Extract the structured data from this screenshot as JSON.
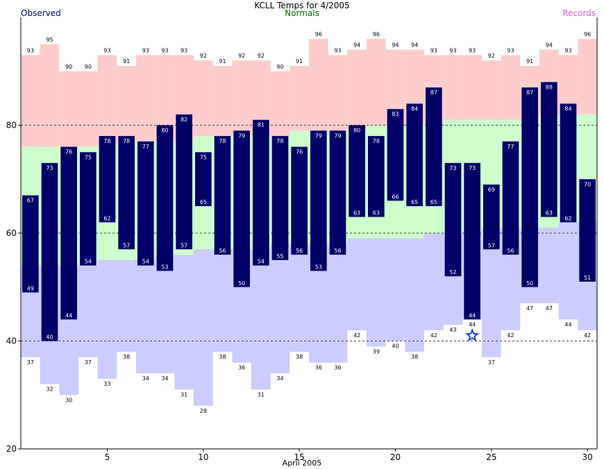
{
  "chart_data": {
    "type": "bar",
    "title": "KCLL Temps for 4/2005",
    "legend": {
      "observed": "Observed",
      "normals": "Normals",
      "records": "Records"
    },
    "xlabel": "April 2005",
    "x_ticks": [
      5,
      10,
      15,
      20,
      25,
      30
    ],
    "y_ticks": [
      20,
      40,
      60,
      80
    ],
    "ylim": [
      20,
      100
    ],
    "xlim": [
      0.5,
      30.5
    ],
    "dashed_gridlines_y": [
      40,
      60,
      80
    ],
    "colors": {
      "observed": "#000066",
      "normals": "#ccffcc",
      "records": "#ffcccc",
      "record_low": "#ccccff",
      "normals_label": "#006600",
      "records_label": "#cc66cc",
      "star": "#2244cc"
    },
    "days": [
      1,
      2,
      3,
      4,
      5,
      6,
      7,
      8,
      9,
      10,
      11,
      12,
      13,
      14,
      15,
      16,
      17,
      18,
      19,
      20,
      21,
      22,
      23,
      24,
      25,
      26,
      27,
      28,
      29,
      30
    ],
    "observed_high": [
      67,
      73,
      76,
      75,
      78,
      78,
      77,
      80,
      82,
      75,
      78,
      79,
      81,
      78,
      76,
      79,
      79,
      80,
      78,
      83,
      84,
      87,
      73,
      73,
      69,
      77,
      87,
      88,
      84,
      70
    ],
    "observed_low": [
      49,
      40,
      44,
      54,
      62,
      57,
      54,
      53,
      57,
      65,
      56,
      50,
      54,
      55,
      56,
      53,
      56,
      63,
      63,
      66,
      65,
      65,
      52,
      44,
      57,
      56,
      50,
      63,
      62,
      51
    ],
    "normal_high": [
      76,
      76,
      76,
      76,
      76,
      77,
      77,
      77,
      77,
      78,
      78,
      78,
      78,
      78,
      79,
      79,
      79,
      79,
      80,
      80,
      80,
      80,
      81,
      81,
      81,
      81,
      81,
      82,
      82,
      82
    ],
    "normal_low": [
      54,
      54,
      54,
      54,
      55,
      55,
      55,
      56,
      56,
      57,
      57,
      57,
      57,
      58,
      58,
      58,
      58,
      59,
      59,
      59,
      59,
      60,
      60,
      60,
      61,
      61,
      61,
      61,
      62,
      62
    ],
    "record_high": [
      93,
      95,
      90,
      90,
      93,
      91,
      93,
      93,
      93,
      92,
      91,
      92,
      92,
      90,
      91,
      96,
      93,
      94,
      96,
      94,
      94,
      93,
      93,
      93,
      92,
      93,
      91,
      94,
      93,
      96
    ],
    "record_low": [
      37,
      32,
      30,
      37,
      33,
      38,
      34,
      34,
      31,
      28,
      38,
      36,
      31,
      34,
      38,
      36,
      36,
      42,
      39,
      40,
      38,
      42,
      43,
      44,
      37,
      42,
      47,
      47,
      44,
      42
    ],
    "marker": {
      "type": "star",
      "day": 24,
      "value": 41
    }
  }
}
